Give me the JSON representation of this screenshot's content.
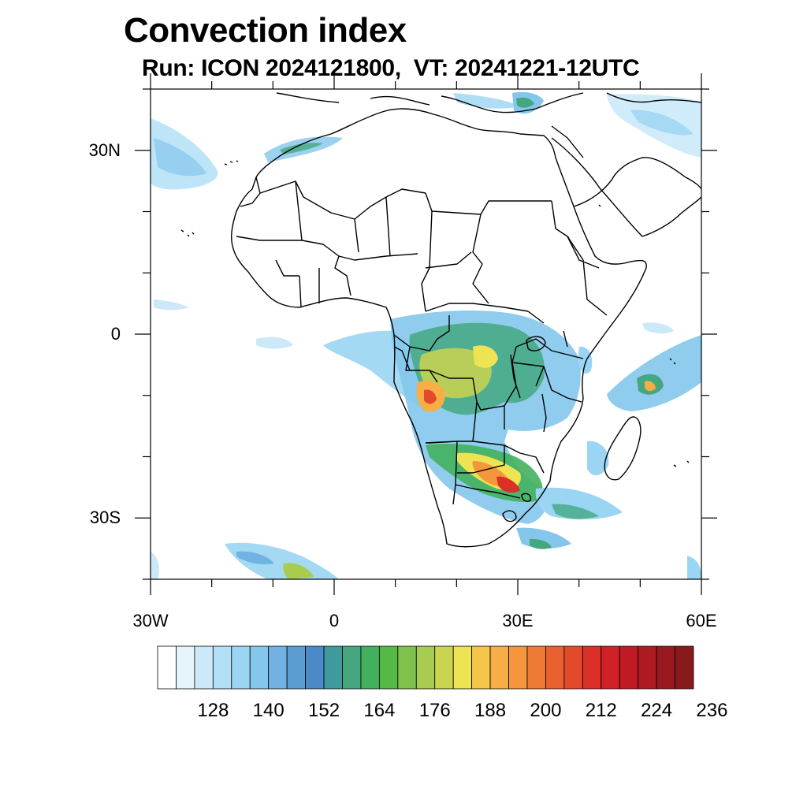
{
  "title": "Convection index",
  "subtitle": "Run: ICON 2024121800,  VT: 20241221-12UTC",
  "map": {
    "lon_range": [
      -30,
      60
    ],
    "lat_range": [
      -40,
      40
    ],
    "lat_ticks": [
      {
        "value": 30,
        "label": "30N"
      },
      {
        "value": 0,
        "label": "0"
      },
      {
        "value": -30,
        "label": "30S"
      }
    ],
    "lon_ticks": [
      {
        "value": -30,
        "label": "30W"
      },
      {
        "value": 0,
        "label": "0"
      },
      {
        "value": 30,
        "label": "30E"
      },
      {
        "value": 60,
        "label": "60E"
      }
    ]
  },
  "colorbar": {
    "colors": [
      "#ffffff",
      "#e6f4fc",
      "#cbe9f8",
      "#b3e0f6",
      "#9ad5f3",
      "#84c6ec",
      "#70b3e2",
      "#5b9cd3",
      "#4a8bc7",
      "#3f9a9e",
      "#44a780",
      "#43b05d",
      "#54b947",
      "#7fc24b",
      "#a8cc4e",
      "#c9d54f",
      "#eee353",
      "#f6c64b",
      "#f7ae44",
      "#f4963c",
      "#ef7a35",
      "#e8612f",
      "#e24a2b",
      "#da3028",
      "#cf2127",
      "#c01b25",
      "#ad1a22",
      "#981a20",
      "#871a1d"
    ],
    "labels": [
      "128",
      "140",
      "152",
      "164",
      "176",
      "188",
      "200",
      "212",
      "224",
      "236"
    ]
  }
}
